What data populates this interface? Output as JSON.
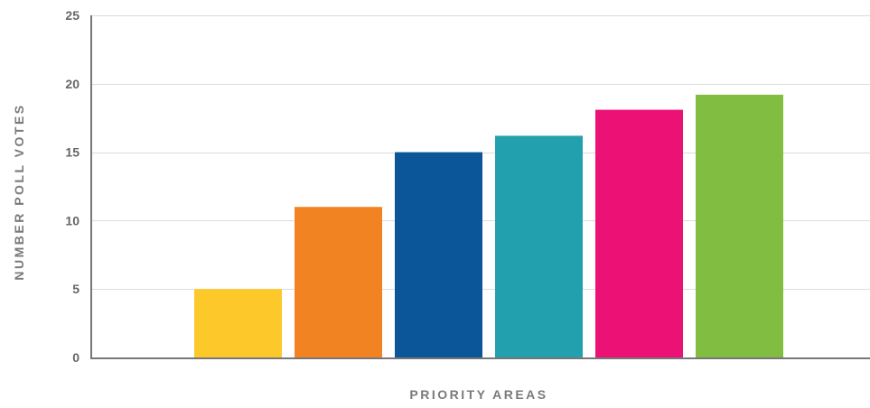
{
  "chart_data": {
    "type": "bar",
    "title": "",
    "xlabel": "PRIORITY AREAS",
    "ylabel": "NUMBER POLL VOTES",
    "categories": [
      "",
      "",
      "",
      "",
      "",
      ""
    ],
    "values": [
      5,
      11,
      15,
      16.2,
      18.1,
      19.2
    ],
    "colors": [
      "#FDC82A",
      "#F28322",
      "#0B5599",
      "#22A0AD",
      "#EC1174",
      "#80BD41"
    ],
    "ylim": [
      0,
      25
    ],
    "yticks": [
      0,
      5,
      10,
      15,
      20,
      25
    ],
    "grid": true,
    "legend": "none",
    "gridColor": "#dcdcdc",
    "axisColor": "#777777"
  }
}
